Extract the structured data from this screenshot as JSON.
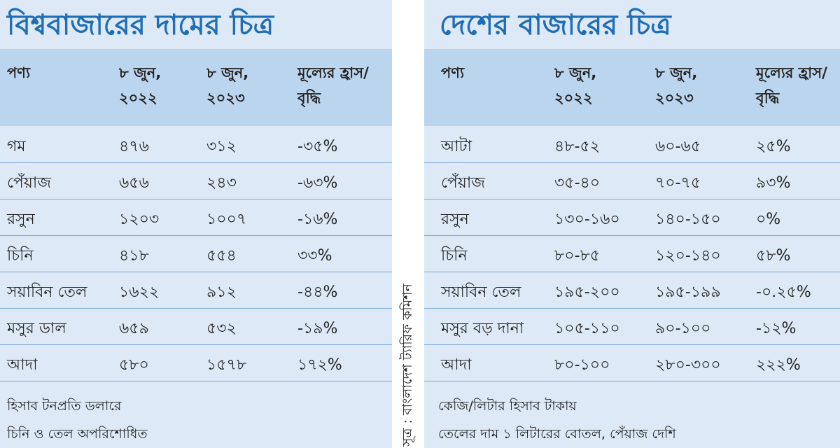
{
  "left": {
    "title": "বিশ্ববাজারের দামের চিত্র",
    "header": [
      "পণ্য",
      "৮ জুন, ২০২২",
      "৮ জুন, ২০২৩",
      "মূল্যের হ্রাস/বৃদ্ধি"
    ],
    "rows": [
      [
        "গম",
        "৪৭৬",
        "৩১২",
        "-৩৫%"
      ],
      [
        "পেঁয়াজ",
        "৬৫৬",
        "২৪৩",
        "-৬৩%"
      ],
      [
        "রসুন",
        "১২০৩",
        "১০০৭",
        "-১৬%"
      ],
      [
        "চিনি",
        "৪১৮",
        "৫৫৪",
        "৩৩%"
      ],
      [
        "সয়াবিন তেল",
        "১৬২২",
        "৯১২",
        "-৪৪%"
      ],
      [
        "মসুর ডাল",
        "৬৫৯",
        "৫৩২",
        "-১৯%"
      ],
      [
        "আদা",
        "৫৮০",
        "১৫৭৮",
        "১৭২%"
      ]
    ],
    "notes": [
      "হিসাব টনপ্রতি ডলারে",
      "চিনি ও তেল অপরিশোধিত"
    ]
  },
  "source": "সূত্র : বাংলাদেশ ট্যারিফ কমিশন",
  "right": {
    "title": "দেশের বাজারের চিত্র",
    "header": [
      "পণ্য",
      "৮ জুন, ২০২২",
      "৮ জুন, ২০২৩",
      "মূল্যের হ্রাস/বৃদ্ধি"
    ],
    "rows": [
      [
        "আটা",
        "৪৮-৫২",
        "৬০-৬৫",
        "২৫%"
      ],
      [
        "পেঁয়াজ",
        "৩৫-৪০",
        "৭০-৭৫",
        "৯৩%"
      ],
      [
        "রসুন",
        "১৩০-১৬০",
        "১৪০-১৫০",
        "০%"
      ],
      [
        "চিনি",
        "৮০-৮৫",
        "১২০-১৪০",
        "৫৮%"
      ],
      [
        "সয়াবিন তেল",
        "১৯৫-২০০",
        "১৯৫-১৯৯",
        "-০.২৫%"
      ],
      [
        "মসুর বড় দানা",
        "১০৫-১১০",
        "৯০-১০০",
        "-১২%"
      ],
      [
        "আদা",
        "৮০-১০০",
        "২৮০-৩০০",
        "২২২%"
      ]
    ],
    "notes": [
      "কেজি/লিটার  হিসাব টাকায়",
      "তেলের দাম ১ লিটারের বোতল, পেঁয়াজ দেশি"
    ]
  }
}
